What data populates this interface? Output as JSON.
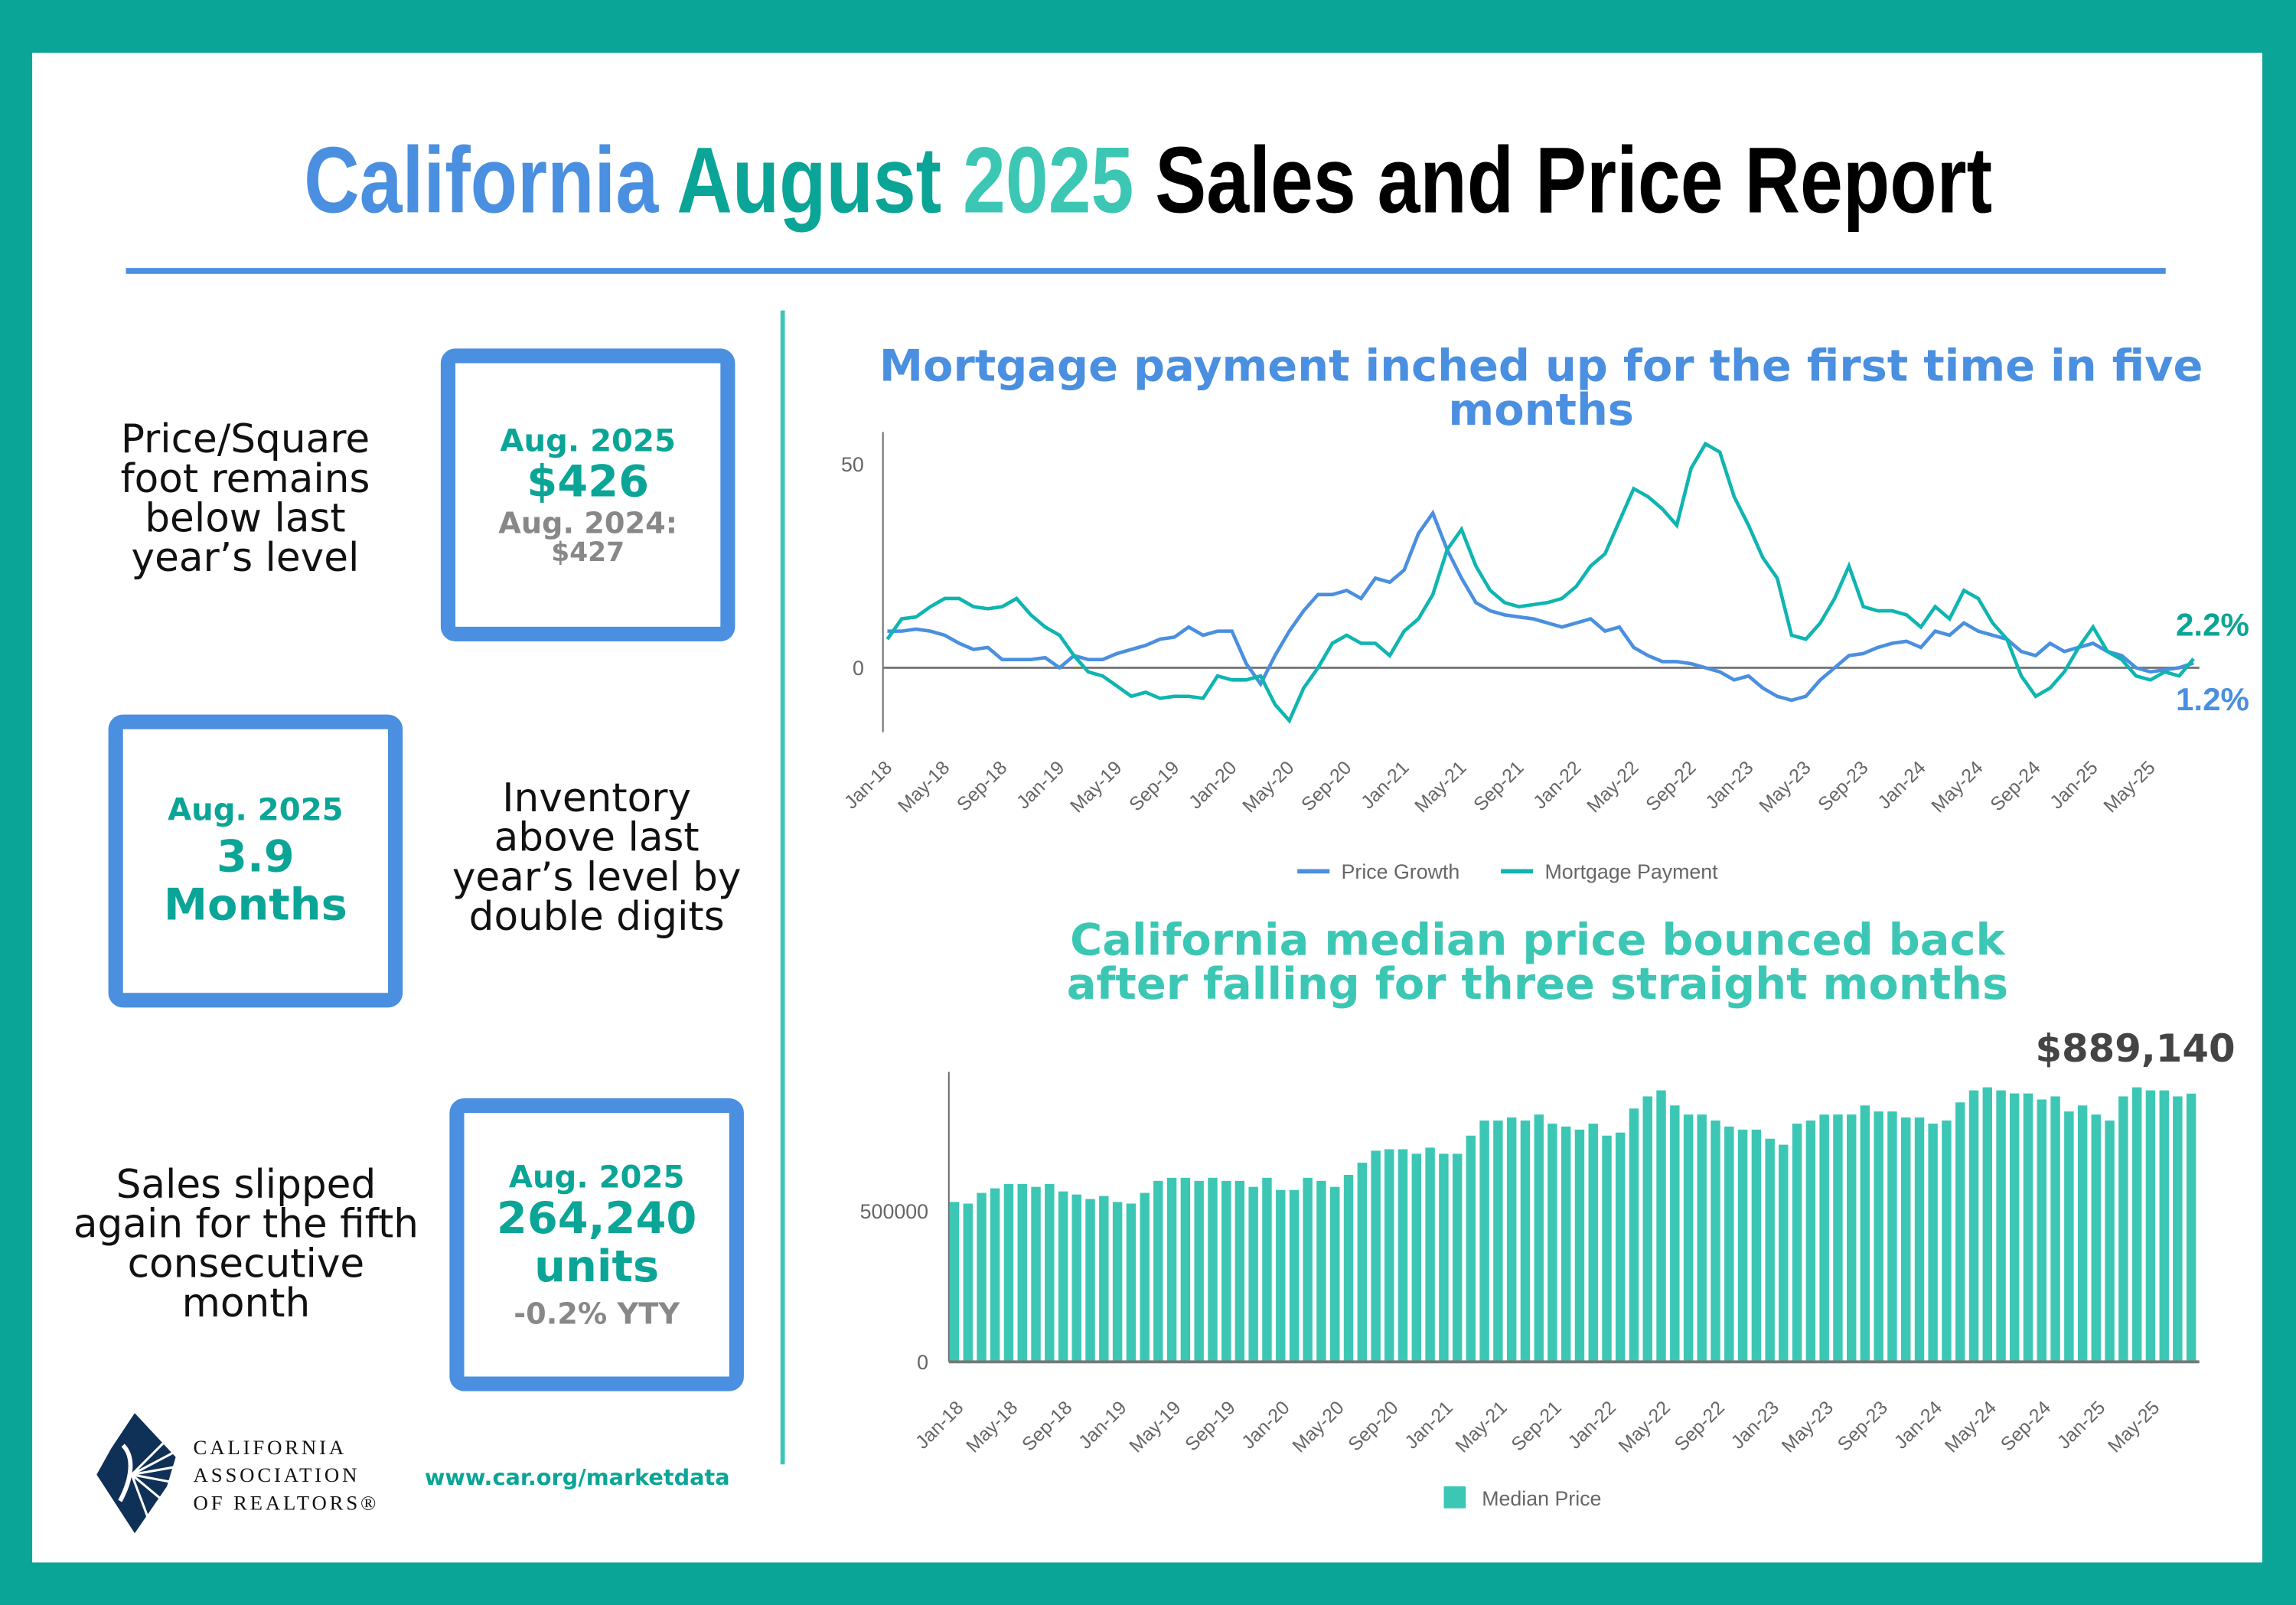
{
  "title": {
    "part1": "California",
    "part2": "August",
    "part3": "2025",
    "part4": "Sales and Price Report"
  },
  "colors": {
    "blue": "#4a8fe0",
    "teal_dark": "#0aa596",
    "teal": "#3cc7b5",
    "frame": "#0aa596"
  },
  "price_sqft": {
    "text": "Price/Square foot remains below last year’s level",
    "label": "Aug. 2025",
    "value": "$426",
    "prior_label": "Aug. 2024:",
    "prior_value": "$427"
  },
  "inventory": {
    "text": "Inventory above last year’s level by double digits",
    "label": "Aug. 2025",
    "value": "3.9 Months"
  },
  "sales": {
    "text": "Sales slipped again for the fifth consecutive month",
    "label": "Aug. 2025",
    "value": "264,240",
    "unit": "units",
    "change": "-0.2% YTY"
  },
  "footer": {
    "logo_line1": "CALIFORNIA",
    "logo_line2": "ASSOCIATION",
    "logo_line3": "OF REALTORS®",
    "url": "www.car.org/marketdata"
  },
  "chart_data": [
    {
      "type": "line",
      "title": "Mortgage payment inched up for the first time in five months",
      "x_start": "Jan-18",
      "x_end": "Aug-25",
      "tick_labels": [
        "Jan-18",
        "May-18",
        "Sep-18",
        "Jan-19",
        "May-19",
        "Sep-19",
        "Jan-20",
        "May-20",
        "Sep-20",
        "Jan-21",
        "May-21",
        "Sep-21",
        "Jan-22",
        "May-22",
        "Sep-22",
        "Jan-23",
        "May-23",
        "Sep-23",
        "Jan-24",
        "May-24",
        "Sep-24",
        "Jan-25",
        "May-25"
      ],
      "y_ticks": [
        0,
        50
      ],
      "ylim": [
        -16,
        58
      ],
      "legend": "bottom",
      "series": [
        {
          "name": "Price Growth",
          "color": "#4a8fe0",
          "end_label": "1.2%",
          "values": [
            9,
            9,
            9.5,
            9,
            8,
            6,
            4.5,
            5,
            2,
            2,
            2,
            2.5,
            0,
            3,
            2,
            2,
            3.5,
            4.5,
            5.5,
            7,
            7.5,
            10,
            8,
            9,
            9,
            1,
            -4,
            3,
            9,
            14,
            18,
            18,
            19,
            17,
            22,
            21,
            24,
            33,
            38,
            29,
            22,
            16,
            14,
            13,
            12.5,
            12,
            11,
            10,
            11,
            12,
            9,
            10,
            5,
            3,
            1.5,
            1.5,
            1,
            0,
            -1,
            -3,
            -2,
            -5,
            -7,
            -8,
            -7,
            -3,
            0,
            3,
            3.5,
            5,
            6,
            6.5,
            5,
            9,
            8,
            11,
            9,
            8,
            7,
            4,
            3,
            6,
            4,
            5,
            6,
            4,
            3,
            0,
            -1,
            -0.5,
            0,
            1.2
          ]
        },
        {
          "name": "Mortgage Payment",
          "color": "#0fb5b0",
          "end_label": "2.2%",
          "values": [
            7,
            12,
            12.5,
            15,
            17,
            17,
            15,
            14.5,
            15,
            17,
            13,
            10,
            8,
            3,
            -1,
            -2,
            -4.5,
            -7,
            -6,
            -7.5,
            -7,
            -7,
            -7.5,
            -2,
            -3,
            -3,
            -2,
            -9,
            -13,
            -5,
            0,
            6,
            8,
            6,
            6,
            3,
            9,
            12,
            18,
            29,
            34,
            25,
            19,
            16,
            15,
            15.5,
            16,
            17,
            20,
            25,
            28,
            36,
            44,
            42,
            39,
            35,
            49,
            55,
            53,
            42,
            35,
            27,
            22,
            8,
            7,
            11,
            17,
            25,
            15,
            14,
            14,
            13,
            10,
            15,
            12,
            19,
            17,
            11,
            7,
            -2,
            -7,
            -5,
            -1,
            5,
            10,
            4,
            2,
            -2,
            -3,
            -1,
            -2,
            2.2
          ]
        }
      ]
    },
    {
      "type": "bar",
      "title": "California median price bounced back after falling for three straight months",
      "x_start": "Jan-18",
      "x_end": "Aug-25",
      "tick_labels": [
        "Jan-18",
        "May-18",
        "Sep-18",
        "Jan-19",
        "May-19",
        "Sep-19",
        "Jan-20",
        "May-20",
        "Sep-20",
        "Jan-21",
        "May-21",
        "Sep-21",
        "Jan-22",
        "May-22",
        "Sep-22",
        "Jan-23",
        "May-23",
        "Sep-23",
        "Jan-24",
        "May-24",
        "Sep-24",
        "Jan-25",
        "May-25"
      ],
      "y_ticks": [
        0,
        500000
      ],
      "ylim": [
        0,
        960000
      ],
      "legend": "bottom",
      "end_label": "$889,140",
      "series": [
        {
          "name": "Median Price",
          "color": "#3cc7b5",
          "values": [
            530000,
            525000,
            560000,
            575000,
            590000,
            590000,
            580000,
            590000,
            565000,
            555000,
            540000,
            550000,
            530000,
            525000,
            560000,
            600000,
            610000,
            610000,
            600000,
            610000,
            600000,
            600000,
            580000,
            610000,
            570000,
            570000,
            610000,
            600000,
            580000,
            620000,
            660000,
            700000,
            705000,
            705000,
            690000,
            710000,
            690000,
            690000,
            750000,
            800000,
            800000,
            810000,
            800000,
            820000,
            790000,
            780000,
            770000,
            790000,
            750000,
            760000,
            840000,
            880000,
            900000,
            850000,
            820000,
            820000,
            800000,
            780000,
            770000,
            770000,
            740000,
            720000,
            790000,
            800000,
            820000,
            820000,
            820000,
            850000,
            830000,
            830000,
            810000,
            810000,
            790000,
            800000,
            860000,
            900000,
            910000,
            900000,
            890000,
            890000,
            870000,
            880000,
            830000,
            850000,
            820000,
            800000,
            880000,
            910000,
            900000,
            900000,
            880000,
            889140
          ]
        }
      ]
    }
  ]
}
